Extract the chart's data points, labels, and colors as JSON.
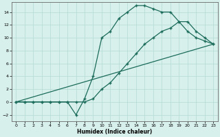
{
  "xlabel": "Humidex (Indice chaleur)",
  "bg_color": "#d8f0ec",
  "grid_color": "#b8ddd8",
  "line_color": "#1a6b5a",
  "xlim": [
    -0.5,
    23.5
  ],
  "ylim": [
    -3,
    15.5
  ],
  "xticks": [
    0,
    1,
    2,
    3,
    4,
    5,
    6,
    7,
    8,
    9,
    10,
    11,
    12,
    13,
    14,
    15,
    16,
    17,
    18,
    19,
    20,
    21,
    22,
    23
  ],
  "yticks": [
    -2,
    0,
    2,
    4,
    6,
    8,
    10,
    12,
    14
  ],
  "line1_x": [
    0,
    1,
    2,
    3,
    4,
    5,
    6,
    7,
    8,
    9,
    10,
    11,
    12,
    13,
    14,
    15,
    16,
    17,
    18,
    19,
    20,
    21,
    22,
    23
  ],
  "line1_y": [
    0,
    0,
    0,
    0,
    0,
    0,
    0,
    -2,
    0.5,
    4,
    10,
    11,
    13,
    14,
    15,
    15,
    14.5,
    14,
    14,
    12.5,
    11,
    10,
    9.5,
    9
  ],
  "line2_x": [
    0,
    1,
    2,
    3,
    4,
    5,
    6,
    7,
    8,
    9,
    10,
    11,
    12,
    13,
    14,
    15,
    16,
    17,
    18,
    19,
    20,
    21,
    22,
    23
  ],
  "line2_y": [
    0,
    0,
    0,
    0,
    0,
    0,
    0,
    0,
    0,
    0.5,
    2,
    3,
    4.5,
    6,
    7.5,
    9,
    10,
    11,
    11.5,
    12.5,
    12.5,
    11,
    10,
    9
  ],
  "line3_x": [
    0,
    23
  ],
  "line3_y": [
    0,
    9
  ]
}
